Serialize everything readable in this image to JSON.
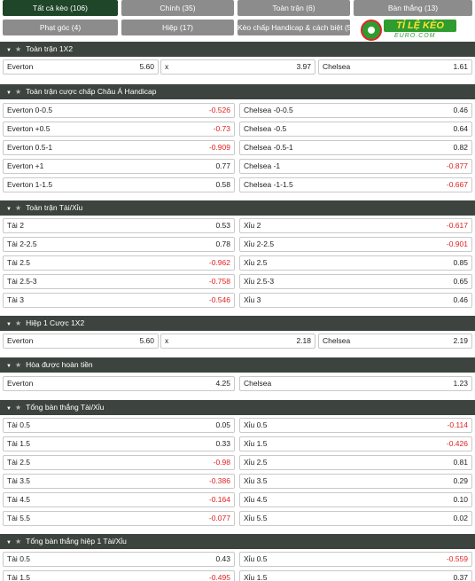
{
  "tabs": [
    {
      "label": "Tất cả kèo (106)",
      "active": true
    },
    {
      "label": "Chính (35)",
      "active": false
    },
    {
      "label": "Toàn trận (6)",
      "active": false
    },
    {
      "label": "Bàn thắng (13)",
      "active": false
    },
    {
      "label": "Phạt góc (4)",
      "active": false
    },
    {
      "label": "Hiệp (17)",
      "active": false
    },
    {
      "label": "Kèo chấp Handicap & cách biệt (5)",
      "active": false
    }
  ],
  "logo": {
    "word": "TỈ LỆ KÈO",
    "sub": "EURO.COM"
  },
  "sections": [
    {
      "title": "Toàn trận 1X2",
      "rows": [
        [
          {
            "label": "Everton",
            "odd": "5.60"
          },
          {
            "label": "x",
            "odd": "3.97"
          },
          {
            "label": "Chelsea",
            "odd": "1.61"
          }
        ]
      ]
    },
    {
      "title": "Toàn trận cược chấp Châu Á Handicap",
      "rows": [
        [
          {
            "label": "Everton",
            "line": "0-0.5",
            "odd": "-0.526"
          },
          {
            "label": "Chelsea",
            "line": "-0-0.5",
            "odd": "0.46"
          }
        ],
        [
          {
            "label": "Everton",
            "line": "+0.5",
            "odd": "-0.73"
          },
          {
            "label": "Chelsea",
            "line": "-0.5",
            "odd": "0.64"
          }
        ],
        [
          {
            "label": "Everton",
            "line": "0.5-1",
            "odd": "-0.909"
          },
          {
            "label": "Chelsea",
            "line": "-0.5-1",
            "odd": "0.82"
          }
        ],
        [
          {
            "label": "Everton",
            "line": "+1",
            "odd": "0.77"
          },
          {
            "label": "Chelsea",
            "line": "-1",
            "odd": "-0.877"
          }
        ],
        [
          {
            "label": "Everton",
            "line": "1-1.5",
            "odd": "0.58"
          },
          {
            "label": "Chelsea",
            "line": "-1-1.5",
            "odd": "-0.667"
          }
        ]
      ]
    },
    {
      "title": "Toàn trận Tài/Xỉu",
      "rows": [
        [
          {
            "label": "Tài",
            "line": "2",
            "odd": "0.53"
          },
          {
            "label": "Xỉu",
            "line": "2",
            "odd": "-0.617"
          }
        ],
        [
          {
            "label": "Tài",
            "line": "2-2.5",
            "odd": "0.78"
          },
          {
            "label": "Xỉu",
            "line": "2-2.5",
            "odd": "-0.901"
          }
        ],
        [
          {
            "label": "Tài",
            "line": "2.5",
            "odd": "-0.962"
          },
          {
            "label": "Xỉu",
            "line": "2.5",
            "odd": "0.85"
          }
        ],
        [
          {
            "label": "Tài",
            "line": "2.5-3",
            "odd": "-0.758"
          },
          {
            "label": "Xỉu",
            "line": "2.5-3",
            "odd": "0.65"
          }
        ],
        [
          {
            "label": "Tài",
            "line": "3",
            "odd": "-0.546"
          },
          {
            "label": "Xỉu",
            "line": "3",
            "odd": "0.46"
          }
        ]
      ]
    },
    {
      "title": "Hiệp 1 Cược 1X2",
      "rows": [
        [
          {
            "label": "Everton",
            "odd": "5.60"
          },
          {
            "label": "x",
            "odd": "2.18"
          },
          {
            "label": "Chelsea",
            "odd": "2.19"
          }
        ]
      ]
    },
    {
      "title": "Hòa được hoàn tiền",
      "rows": [
        [
          {
            "label": "Everton",
            "odd": "4.25"
          },
          {
            "label": "Chelsea",
            "odd": "1.23"
          }
        ]
      ]
    },
    {
      "title": "Tổng bàn thắng Tài/Xỉu",
      "rows": [
        [
          {
            "label": "Tài",
            "line": "0.5",
            "odd": "0.05"
          },
          {
            "label": "Xỉu",
            "line": "0.5",
            "odd": "-0.114"
          }
        ],
        [
          {
            "label": "Tài",
            "line": "1.5",
            "odd": "0.33"
          },
          {
            "label": "Xỉu",
            "line": "1.5",
            "odd": "-0.426"
          }
        ],
        [
          {
            "label": "Tài",
            "line": "2.5",
            "odd": "-0.98"
          },
          {
            "label": "Xỉu",
            "line": "2.5",
            "odd": "0.81"
          }
        ],
        [
          {
            "label": "Tài",
            "line": "3.5",
            "odd": "-0.386"
          },
          {
            "label": "Xỉu",
            "line": "3.5",
            "odd": "0.29"
          }
        ],
        [
          {
            "label": "Tài",
            "line": "4.5",
            "odd": "-0.164"
          },
          {
            "label": "Xỉu",
            "line": "4.5",
            "odd": "0.10"
          }
        ],
        [
          {
            "label": "Tài",
            "line": "5.5",
            "odd": "-0.077"
          },
          {
            "label": "Xỉu",
            "line": "5.5",
            "odd": "0.02"
          }
        ]
      ]
    },
    {
      "title": "Tổng bàn thắng hiệp 1 Tài/Xỉu",
      "rows": [
        [
          {
            "label": "Tài",
            "line": "0.5",
            "odd": "0.43"
          },
          {
            "label": "Xỉu",
            "line": "0.5",
            "odd": "-0.559"
          }
        ],
        [
          {
            "label": "Tài",
            "line": "1.5",
            "odd": "-0.495"
          },
          {
            "label": "Xỉu",
            "line": "1.5",
            "odd": "0.37"
          }
        ]
      ]
    }
  ],
  "colors": {
    "active_tab": "#1f4628",
    "tab": "#8c8c8c",
    "section_header": "#3d443f",
    "negative": "#e02020"
  }
}
